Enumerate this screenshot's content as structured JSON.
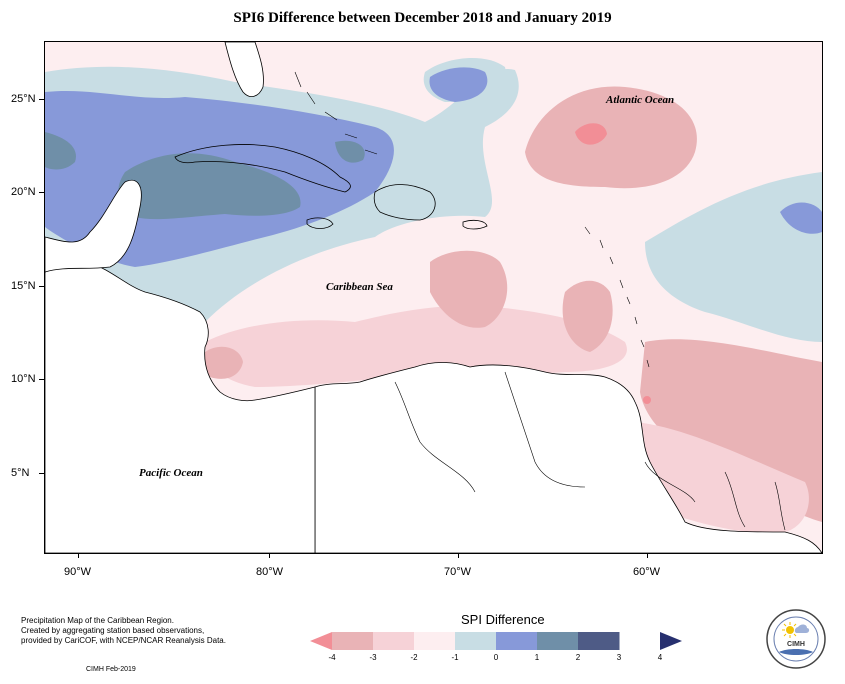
{
  "title": "SPI6 Difference between December 2018 and January 2019",
  "map": {
    "lat_labels": [
      "25°N",
      "20°N",
      "15°N",
      "10°N",
      "5°N"
    ],
    "lon_labels": [
      "90°W",
      "80°W",
      "70°W",
      "60°W"
    ],
    "ocean_labels": {
      "atlantic": "Atlantic Ocean",
      "caribbean": "Caribbean Sea",
      "pacific": "Pacific Ocean"
    }
  },
  "legend": {
    "title": "SPI Difference",
    "tick_labels": [
      "-4",
      "-3",
      "-2",
      "-1",
      "0",
      "1",
      "2",
      "3",
      "4"
    ],
    "colors": [
      "#f28e96",
      "#e9b3b6",
      "#f6d2d7",
      "#fdeef0",
      "#c8dde4",
      "#8799d9",
      "#6f8fa8",
      "#4e5b86",
      "#27306f"
    ]
  },
  "footnote": {
    "line1": "Precipitation Map of the Caribbean Region.",
    "line2": "Created by aggregating station based observations,",
    "line3": "provided by CariCOF, with NCEP/NCAR Reanalysis Data.",
    "credit": "CIMH Feb-2019"
  },
  "logo": {
    "abbr": "CIMH"
  }
}
